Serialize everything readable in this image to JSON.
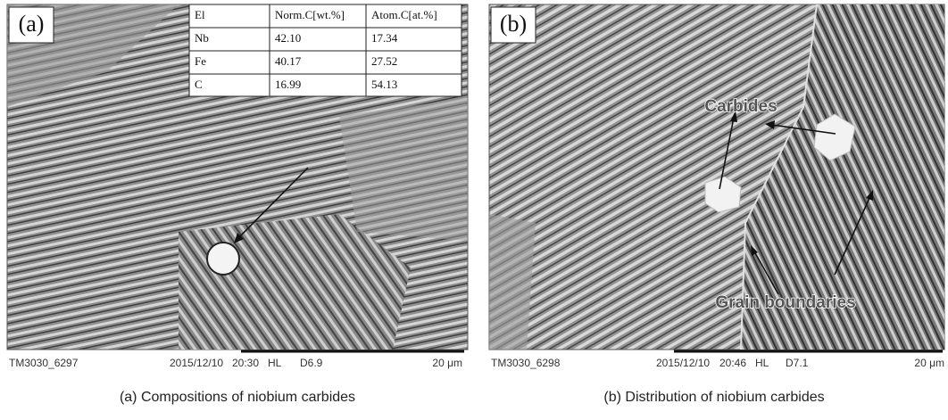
{
  "panels": [
    {
      "label": "(a)",
      "table": {
        "header": [
          "El",
          "Norm.C[wt.%]",
          "Atom.C[at.%]"
        ],
        "rows": [
          [
            "Nb",
            "42.10",
            "17.34"
          ],
          [
            "Fe",
            "40.17",
            "27.52"
          ],
          [
            "C",
            "16.99",
            "54.13"
          ]
        ]
      },
      "footer": {
        "id": "TM3030_6297",
        "date": "2015/12/10",
        "time": "20:30",
        "mode": "HL",
        "distance": "D6.9",
        "scale": "20 μm"
      },
      "caption": "(a) Compositions of niobium carbides"
    },
    {
      "label": "(b)",
      "annotations": [
        "Carbides",
        "Grain boundaries"
      ],
      "footer": {
        "id": "TM3030_6298",
        "date": "2015/12/10",
        "time": "20:46",
        "mode": "HL",
        "distance": "D7.1",
        "scale": "20 μm"
      },
      "caption": "(b) Distribution of niobium carbides"
    }
  ]
}
